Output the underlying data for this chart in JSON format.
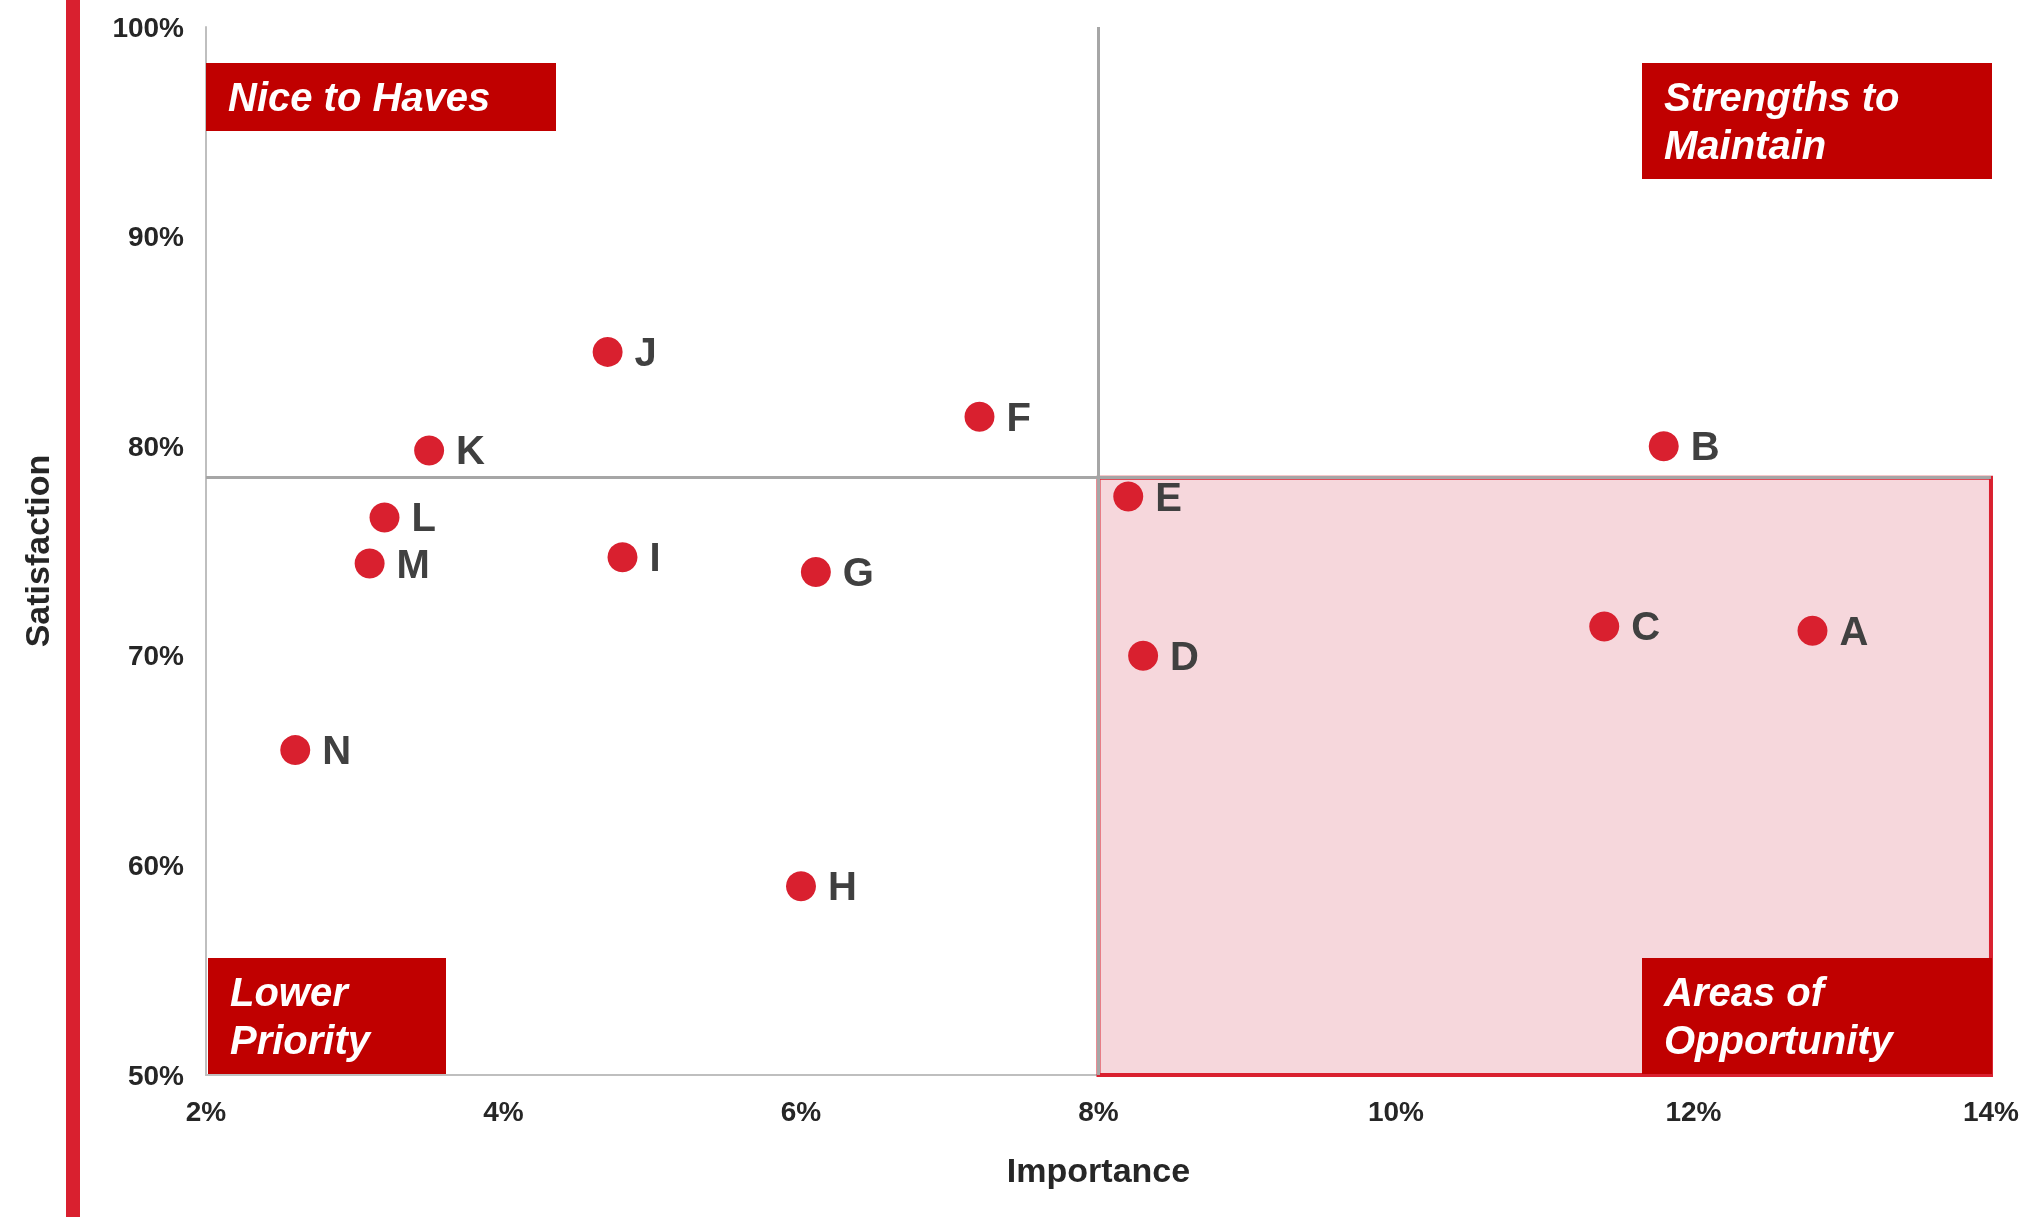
{
  "chart_data": {
    "type": "scatter",
    "xlabel": "Importance",
    "ylabel": "Satisfaction",
    "annotations": [
      "Nice to Haves",
      "Strengths to Maintain",
      "Lower Priority",
      "Areas of Opportunity"
    ],
    "series": [
      {
        "name": "A",
        "color": "#d9202f",
        "x": [
          12.8
        ],
        "values": [
          71.2
        ]
      },
      {
        "name": "B",
        "color": "#d9202f",
        "x": [
          11.8
        ],
        "values": [
          80.0
        ]
      },
      {
        "name": "C",
        "color": "#d9202f",
        "x": [
          11.4
        ],
        "values": [
          71.4
        ]
      },
      {
        "name": "D",
        "color": "#d9202f",
        "x": [
          8.3
        ],
        "values": [
          70.0
        ]
      },
      {
        "name": "E",
        "color": "#d9202f",
        "x": [
          8.2
        ],
        "values": [
          77.6
        ]
      },
      {
        "name": "F",
        "color": "#d9202f",
        "x": [
          7.2
        ],
        "values": [
          81.4
        ]
      },
      {
        "name": "G",
        "color": "#d9202f",
        "x": [
          6.1
        ],
        "values": [
          74.0
        ]
      },
      {
        "name": "H",
        "color": "#d9202f",
        "x": [
          6.0
        ],
        "values": [
          59.0
        ]
      },
      {
        "name": "I",
        "color": "#d9202f",
        "x": [
          4.8
        ],
        "values": [
          74.7
        ]
      },
      {
        "name": "J",
        "color": "#d9202f",
        "x": [
          4.7
        ],
        "values": [
          84.5
        ]
      },
      {
        "name": "K",
        "color": "#d9202f",
        "x": [
          3.5
        ],
        "values": [
          79.8
        ]
      },
      {
        "name": "L",
        "color": "#d9202f",
        "x": [
          3.2
        ],
        "values": [
          76.6
        ]
      },
      {
        "name": "M",
        "color": "#d9202f",
        "x": [
          3.1
        ],
        "values": [
          74.4
        ]
      },
      {
        "name": "N",
        "color": "#d9202f",
        "x": [
          2.6
        ],
        "values": [
          65.5
        ]
      }
    ],
    "xlim": [
      2,
      14
    ],
    "xticks": [
      {
        "value": 2,
        "label": "2%"
      },
      {
        "value": 4,
        "label": "4%"
      },
      {
        "value": 6,
        "label": "6%"
      },
      {
        "value": 8,
        "label": "8%"
      },
      {
        "value": 10,
        "label": "10%"
      },
      {
        "value": 12,
        "label": "12%"
      },
      {
        "value": 14,
        "label": "14%"
      }
    ],
    "ylim": [
      50,
      100
    ],
    "yticks": [
      {
        "value": 50,
        "label": "50%"
      },
      {
        "value": 60,
        "label": "60%"
      },
      {
        "value": 70,
        "label": "70%"
      },
      {
        "value": 80,
        "label": "80%"
      },
      {
        "value": 90,
        "label": "90%"
      },
      {
        "value": 100,
        "label": "100%"
      }
    ],
    "ref_lines": [
      {
        "axis": "x",
        "value": 8,
        "color": "#a6a6a6"
      },
      {
        "axis": "y",
        "value": 78.5,
        "color": "#a6a6a6"
      }
    ],
    "bands": [
      {
        "axis": "x",
        "from": 8,
        "to": 14,
        "color": "#f6d7dc"
      }
    ],
    "grid": false,
    "legend": false,
    "marker": "circle"
  }
}
